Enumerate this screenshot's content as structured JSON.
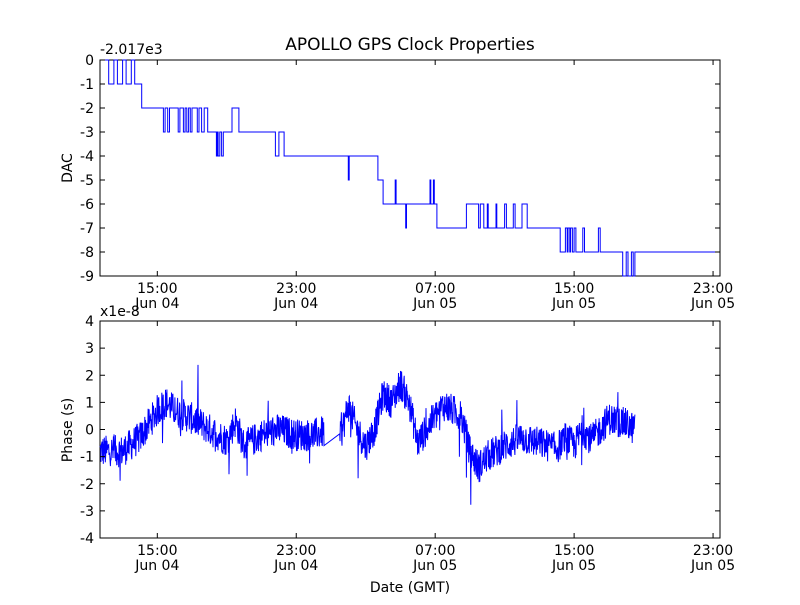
{
  "chart_data": {
    "title": "APOLLO GPS Clock Properties",
    "xlabel": "Date (GMT)",
    "line_color": "#0000ff",
    "xticks": [
      {
        "hours": 15,
        "line1": "15:00",
        "line2": "Jun 04"
      },
      {
        "hours": 23,
        "line1": "23:00",
        "line2": "Jun 04"
      },
      {
        "hours": 31,
        "line1": "07:00",
        "line2": "Jun 05"
      },
      {
        "hours": 39,
        "line1": "15:00",
        "line2": "Jun 05"
      },
      {
        "hours": 47,
        "line1": "23:00",
        "line2": "Jun 05"
      }
    ],
    "xlim": [
      11.7,
      47.4
    ],
    "panels": [
      {
        "id": "dac",
        "type": "line",
        "ylabel": "DAC",
        "offset_label": "-2.017e3",
        "ylim": [
          -9,
          0
        ],
        "yticks": [
          "0",
          "-1",
          "-2",
          "-3",
          "-4",
          "-5",
          "-6",
          "-7",
          "-8",
          "-9"
        ],
        "ytick_values": [
          0,
          -1,
          -2,
          -3,
          -4,
          -5,
          -6,
          -7,
          -8,
          -9
        ],
        "levels": [
          [
            11.7,
            0
          ],
          [
            12.2,
            -1
          ],
          [
            12.5,
            0
          ],
          [
            12.7,
            -1
          ],
          [
            13.0,
            0
          ],
          [
            13.2,
            -1
          ],
          [
            13.5,
            0
          ],
          [
            13.7,
            -1
          ],
          [
            14.0,
            -1
          ],
          [
            14.1,
            -2
          ],
          [
            15.3,
            -2
          ],
          [
            15.35,
            -3
          ],
          [
            15.45,
            -2
          ],
          [
            15.6,
            -3
          ],
          [
            15.7,
            -2
          ],
          [
            16.2,
            -3
          ],
          [
            16.3,
            -2
          ],
          [
            16.5,
            -3
          ],
          [
            16.6,
            -2
          ],
          [
            16.7,
            -3
          ],
          [
            16.8,
            -2
          ],
          [
            16.9,
            -3
          ],
          [
            17.0,
            -2
          ],
          [
            17.3,
            -3
          ],
          [
            17.4,
            -2
          ],
          [
            17.55,
            -3
          ],
          [
            17.7,
            -2
          ],
          [
            17.9,
            -3
          ],
          [
            18.4,
            -4
          ],
          [
            18.45,
            -3
          ],
          [
            18.5,
            -4
          ],
          [
            18.6,
            -3
          ],
          [
            18.7,
            -4
          ],
          [
            18.8,
            -3
          ],
          [
            19.3,
            -2
          ],
          [
            19.7,
            -3
          ],
          [
            21.8,
            -4
          ],
          [
            22.0,
            -3
          ],
          [
            22.3,
            -4
          ],
          [
            26.0,
            -5
          ],
          [
            26.05,
            -4
          ],
          [
            27.7,
            -5
          ],
          [
            28.0,
            -6
          ],
          [
            28.7,
            -5
          ],
          [
            28.75,
            -6
          ],
          [
            29.3,
            -7
          ],
          [
            29.35,
            -6
          ],
          [
            30.7,
            -5
          ],
          [
            30.75,
            -6
          ],
          [
            30.9,
            -5
          ],
          [
            30.95,
            -6
          ],
          [
            31.1,
            -7
          ],
          [
            32.8,
            -6
          ],
          [
            33.5,
            -7
          ],
          [
            33.6,
            -6
          ],
          [
            33.8,
            -7
          ],
          [
            34.0,
            -6
          ],
          [
            34.05,
            -7
          ],
          [
            34.5,
            -6
          ],
          [
            34.55,
            -7
          ],
          [
            35.0,
            -6
          ],
          [
            35.1,
            -7
          ],
          [
            35.5,
            -6
          ],
          [
            35.6,
            -7
          ],
          [
            36.0,
            -6
          ],
          [
            36.3,
            -7
          ],
          [
            38.2,
            -8
          ],
          [
            38.5,
            -7
          ],
          [
            38.6,
            -8
          ],
          [
            38.65,
            -7
          ],
          [
            38.75,
            -8
          ],
          [
            38.8,
            -7
          ],
          [
            38.9,
            -8
          ],
          [
            39.0,
            -7
          ],
          [
            39.1,
            -8
          ],
          [
            39.5,
            -7
          ],
          [
            39.6,
            -8
          ],
          [
            40.4,
            -7
          ],
          [
            40.5,
            -8
          ],
          [
            41.8,
            -9
          ],
          [
            42.0,
            -8
          ],
          [
            42.1,
            -9
          ],
          [
            42.3,
            -8
          ],
          [
            42.4,
            -9
          ],
          [
            42.5,
            -8
          ],
          [
            47.4,
            -8
          ]
        ]
      },
      {
        "id": "phase",
        "type": "line",
        "ylabel": "Phase (s)",
        "offset_label": "x1e-8",
        "ylim": [
          -4,
          4
        ],
        "yticks": [
          "4",
          "3",
          "2",
          "1",
          "0",
          "-1",
          "-2",
          "-3",
          "-4"
        ],
        "ytick_values": [
          4,
          3,
          2,
          1,
          0,
          -1,
          -2,
          -3,
          -4
        ],
        "trend": [
          [
            11.7,
            -0.8
          ],
          [
            13.0,
            -0.8
          ],
          [
            14.0,
            -0.3
          ],
          [
            15.0,
            0.7
          ],
          [
            15.5,
            1.0
          ],
          [
            16.0,
            0.7
          ],
          [
            17.0,
            0.4
          ],
          [
            18.0,
            0.0
          ],
          [
            19.0,
            -0.4
          ],
          [
            19.5,
            0.3
          ],
          [
            20.0,
            -0.6
          ],
          [
            21.0,
            -0.2
          ],
          [
            22.0,
            0.0
          ],
          [
            23.0,
            -0.2
          ],
          [
            24.0,
            -0.2
          ],
          [
            24.5,
            -0.1
          ],
          [
            25.5,
            -0.4
          ],
          [
            26.0,
            0.9
          ],
          [
            26.5,
            0.0
          ],
          [
            27.0,
            -0.6
          ],
          [
            27.5,
            0.0
          ],
          [
            28.0,
            1.3
          ],
          [
            28.5,
            1.0
          ],
          [
            29.0,
            1.7
          ],
          [
            29.5,
            1.0
          ],
          [
            30.0,
            -0.5
          ],
          [
            30.5,
            0.0
          ],
          [
            31.0,
            0.5
          ],
          [
            31.5,
            0.9
          ],
          [
            32.0,
            0.7
          ],
          [
            32.5,
            0.5
          ],
          [
            33.0,
            -0.8
          ],
          [
            33.5,
            -1.4
          ],
          [
            34.0,
            -1.0
          ],
          [
            35.0,
            -0.6
          ],
          [
            36.0,
            -0.3
          ],
          [
            37.0,
            -0.5
          ],
          [
            38.0,
            -0.7
          ],
          [
            38.5,
            -0.3
          ],
          [
            39.0,
            -0.6
          ],
          [
            39.5,
            0.0
          ],
          [
            40.0,
            -0.4
          ],
          [
            41.0,
            0.4
          ],
          [
            42.0,
            0.2
          ],
          [
            42.5,
            0.0
          ]
        ],
        "gaps": [
          [
            24.6,
            25.5
          ]
        ],
        "noise": 0.6
      }
    ]
  }
}
